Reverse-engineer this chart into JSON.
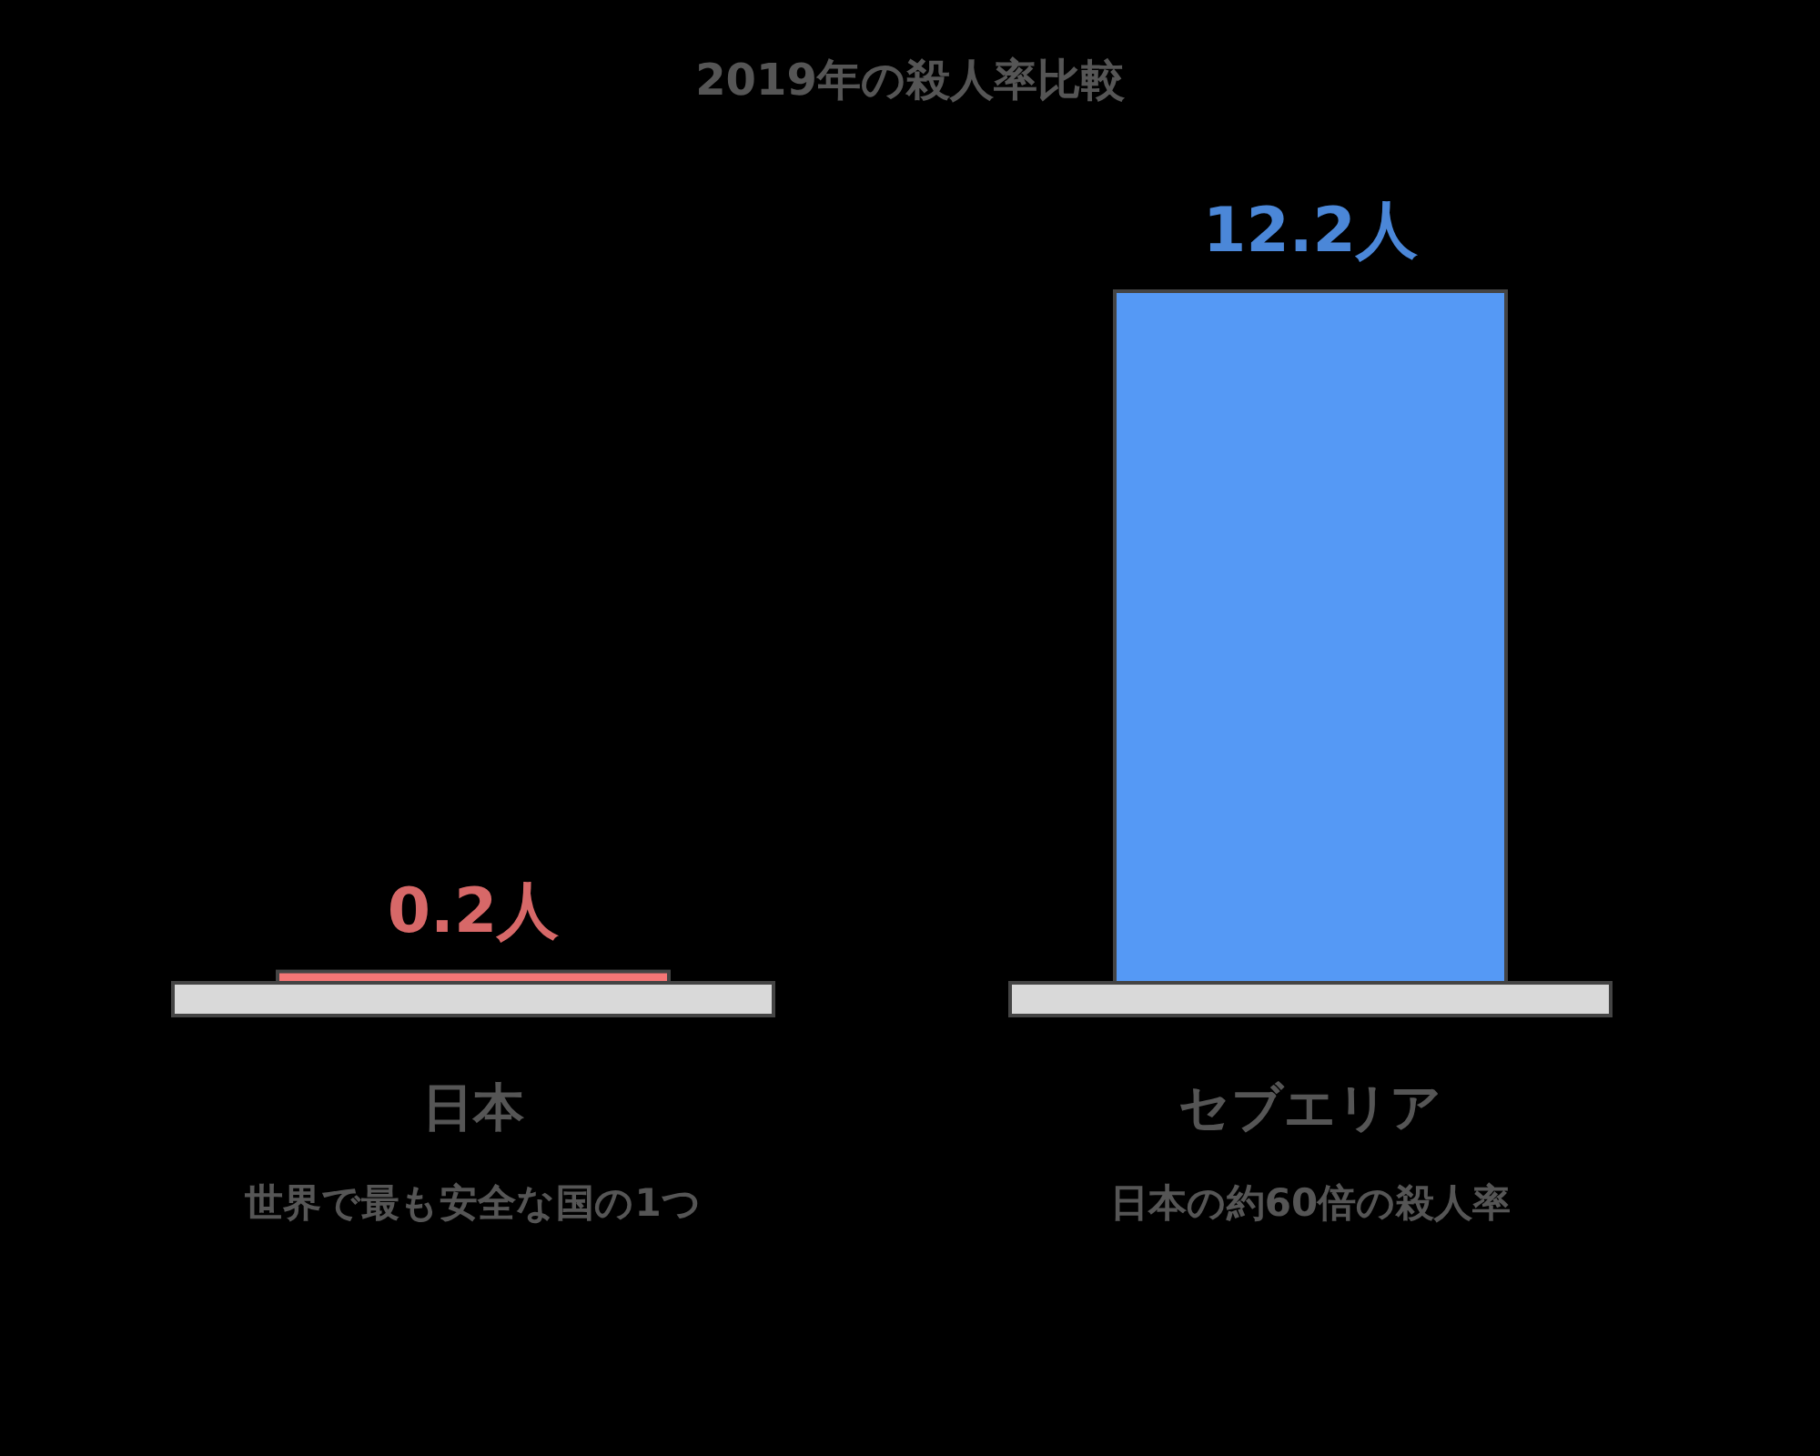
{
  "chart_data": {
    "type": "bar",
    "title": "2019年の殺人率比較",
    "categories": [
      "日本",
      "セブエリア"
    ],
    "values": [
      0.2,
      12.2
    ],
    "colors": [
      "#f47676",
      "#5599f5"
    ],
    "value_labels": [
      "0.2人",
      "12.2人"
    ],
    "annotations": [
      "世界で最も安全な国の1つ",
      "日本の約60倍の殺人率"
    ]
  }
}
